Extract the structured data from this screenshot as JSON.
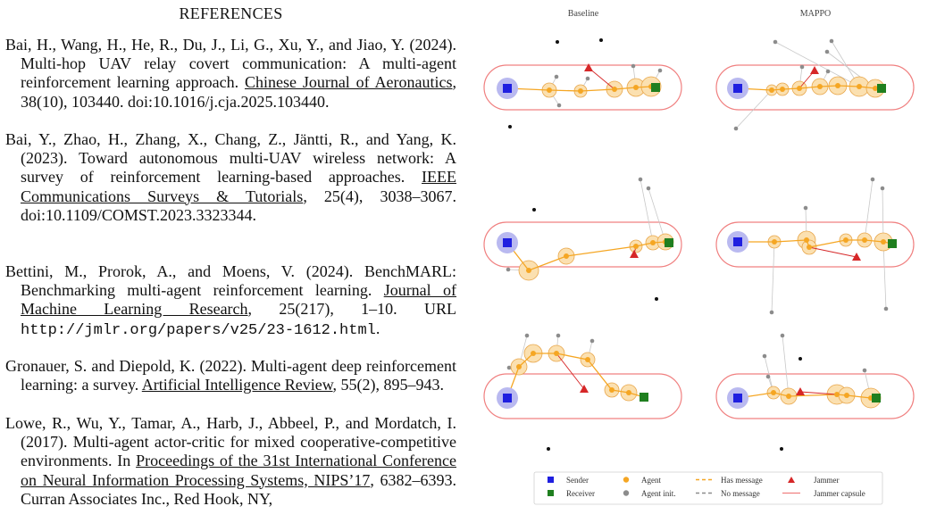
{
  "references": {
    "heading": "REFERENCES",
    "items": [
      {
        "before": "Bai, H., Wang, H., He, R., Du, J., Li, G., Xu, Y., and Jiao, Y. (2024). Multi-hop UAV relay covert communication: A multi-agent reinforcement learning approach. ",
        "venue": "Chinese Journal of Aeronautics",
        "after": ", 38(10), 103440. doi:10.1016/j.cja.2025.103440."
      },
      {
        "before": "Bai, Y., Zhao, H., Zhang, X., Chang, Z., Jäntti, R., and Yang, K. (2023). Toward autonomous multi-UAV wireless network: A survey of reinforcement learning-based approaches. ",
        "venue": "IEEE Communications Surveys & Tutorials",
        "after": ", 25(4), 3038–3067. doi:10.1109/COMST.2023.3323344."
      },
      {
        "before": "Bettini, M., Prorok, A., and Moens, V. (2024). BenchMARL: Benchmarking multi-agent reinforcement learning. ",
        "venue": "Journal of Machine Learning Research",
        "after": ", 25(217), 1–10. URL ",
        "url": "http://jmlr.org/papers/v25/23-1612.html",
        "end": "."
      },
      {
        "before": "Gronauer, S. and Diepold, K. (2022). Multi-agent deep reinforcement learning: a survey. ",
        "venue": "Artificial Intelligence Review",
        "after": ", 55(2), 895–943."
      },
      {
        "before": "Lowe, R., Wu, Y., Tamar, A., Harb, J., Abbeel, P., and Mordatch, I. (2017). Multi-agent actor-critic for mixed cooperative-competitive environments. In ",
        "venue": "Proceedings of the 31st International Conference on Neural Information Processing Systems, NIPS’17",
        "after": ", 6382–6393. Curran Associates Inc., Red Hook, NY,"
      }
    ]
  },
  "figure": {
    "column_titles": [
      "Baseline",
      "MAPPO"
    ],
    "legend": {
      "sender": "Sender",
      "receiver": "Receiver",
      "agent": "Agent",
      "agent_init": "Agent init.",
      "has_message": "Has message",
      "no_message": "No message",
      "jammer": "Jammer",
      "jammer_capsule": "Jammer capsule"
    },
    "colors": {
      "sender": "#1f1fe0",
      "sender_halo": "#b9b9f0",
      "receiver": "#1f7f1f",
      "agent": "#f5a623",
      "agent_halo": "#fbe0b0",
      "agent_init": "#8c8c8c",
      "jammer": "#d62728",
      "capsule": "#f08080"
    }
  }
}
